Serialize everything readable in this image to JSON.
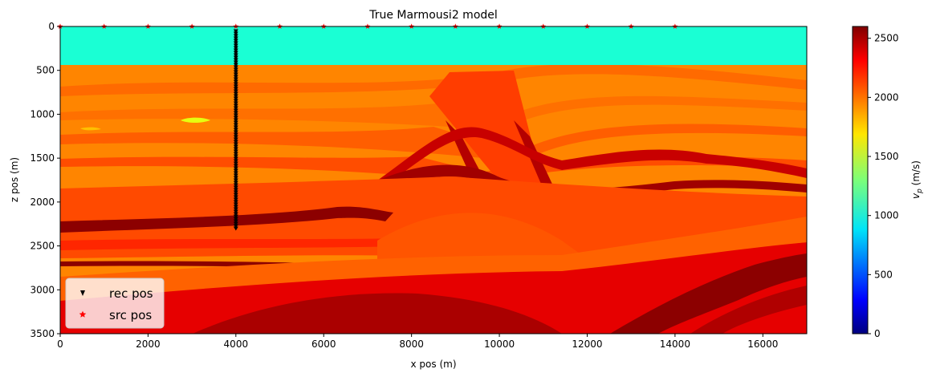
{
  "chart_data": {
    "type": "heatmap",
    "title": "True Marmousi2 model",
    "xlabel": "x pos (m)",
    "ylabel": "z pos (m)",
    "xlim": [
      0,
      17000
    ],
    "ylim": [
      3500,
      0
    ],
    "xticks": [
      "0",
      "2000",
      "4000",
      "6000",
      "8000",
      "10000",
      "12000",
      "14000",
      "16000"
    ],
    "yticks": [
      "0",
      "500",
      "1000",
      "1500",
      "2000",
      "2500",
      "3000",
      "3500"
    ],
    "grid": false,
    "colormap": "jet",
    "colorbar": {
      "label": "v_p (m/s)",
      "label_main": "v",
      "label_sub": "p",
      "label_units": " (m/s)",
      "range": [
        0,
        2600
      ],
      "ticks": [
        "0",
        "500",
        "1000",
        "1500",
        "2000",
        "2500"
      ]
    },
    "legend": {
      "placement": "lower-left",
      "entries": [
        {
          "label": "rec pos",
          "marker": "triangle-down",
          "color": "#000000"
        },
        {
          "label": "src pos",
          "marker": "star",
          "color": "#ff0000"
        }
      ]
    },
    "water_layer": {
      "velocity": 1030,
      "z_bottom": 450
    },
    "receivers": {
      "x": 4000,
      "z_start": 50,
      "z_end": 2300
    },
    "sources": {
      "z": 0,
      "x": [
        0,
        1000,
        2000,
        3000,
        4000,
        5000,
        6000,
        7000,
        8000,
        9000,
        10000,
        11000,
        12000,
        13000,
        14000
      ]
    }
  },
  "colors": {
    "water": "#1affd4",
    "sediment_orange": "#ff8a00",
    "sediment_red": "#ff3d00",
    "deep_red": "#c80000",
    "dark_red": "#8c0000",
    "yellow_lens": "#e6ff10"
  }
}
